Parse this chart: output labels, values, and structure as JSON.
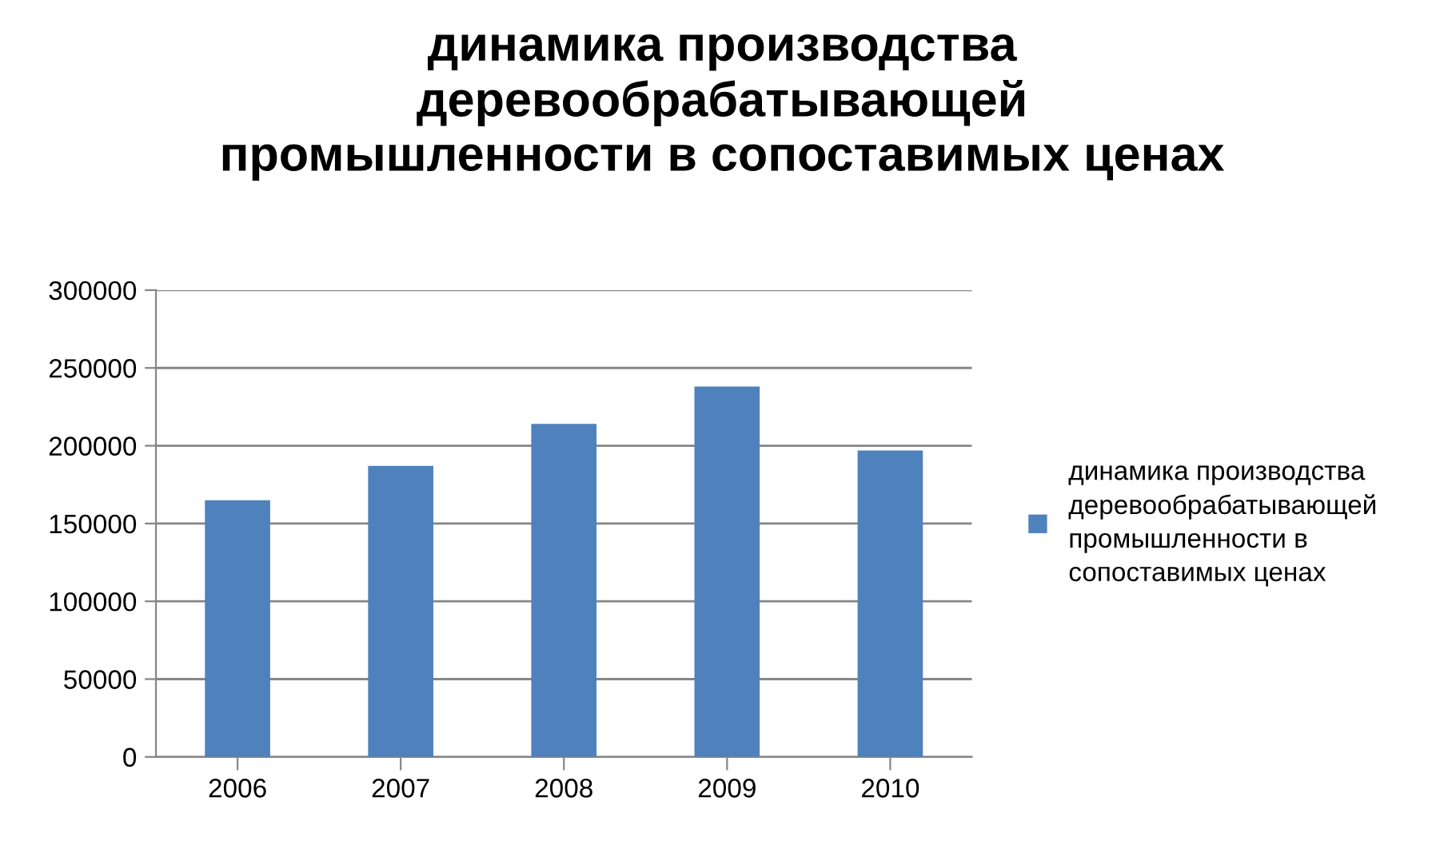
{
  "chart_data": {
    "type": "bar",
    "title": "динамика производства\nдеревообрабатывающей\nпромышленности в сопоставимых ценах",
    "categories": [
      "2006",
      "2007",
      "2008",
      "2009",
      "2010"
    ],
    "series": [
      {
        "name": "динамика производства\nдеревообрабатывающей\nпромышленности в\nсопоставимых ценах",
        "color": "#4f81bd",
        "values": [
          165000,
          187000,
          214000,
          238000,
          197000
        ]
      }
    ],
    "ylim": [
      0,
      300000
    ],
    "yticks": [
      0,
      50000,
      100000,
      150000,
      200000,
      250000,
      300000
    ],
    "grid": "y",
    "legend": "right"
  }
}
